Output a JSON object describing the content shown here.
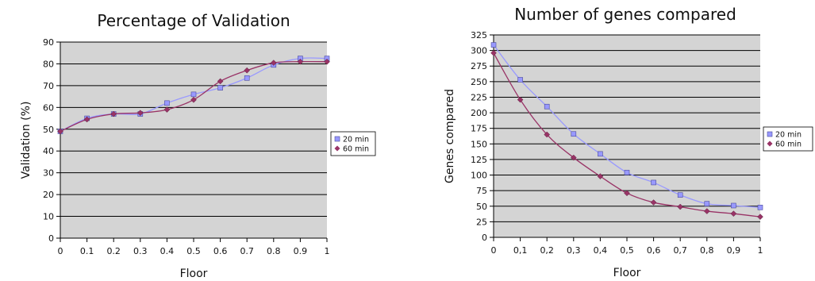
{
  "chart_data": [
    {
      "type": "line",
      "title": "Percentage of Validation",
      "xlabel": "Floor",
      "ylabel": "Validation (%)",
      "xlim": [
        0,
        1
      ],
      "ylim": [
        0,
        90
      ],
      "x": [
        0,
        0.1,
        0.2,
        0.3,
        0.4,
        0.5,
        0.6,
        0.7,
        0.8,
        0.9,
        1
      ],
      "x_tick_labels": [
        "0",
        "0.1",
        "0.2",
        "0.3",
        "0.4",
        "0.5",
        "0.6",
        "0.7",
        "0.8",
        "0.9",
        "1"
      ],
      "y_ticks": [
        0,
        10,
        20,
        30,
        40,
        50,
        60,
        70,
        80,
        90
      ],
      "grid": "horizontal",
      "legend_position": "right",
      "series": [
        {
          "name": "20 min",
          "color": "#9999ff",
          "marker": "square",
          "values": [
            49,
            55,
            57,
            57,
            62,
            66,
            69,
            73.5,
            79.5,
            82.5,
            82.5
          ]
        },
        {
          "name": "60 min",
          "color": "#993366",
          "marker": "diamond",
          "values": [
            49,
            54.5,
            57,
            57.5,
            59,
            63.5,
            72,
            77,
            80.5,
            81,
            81
          ]
        }
      ]
    },
    {
      "type": "line",
      "title": "Number of genes compared",
      "xlabel": "Floor",
      "ylabel": "Genes compared",
      "xlim": [
        0,
        1
      ],
      "ylim": [
        0,
        325
      ],
      "x": [
        0,
        0.1,
        0.2,
        0.3,
        0.4,
        0.5,
        0.6,
        0.7,
        0.8,
        0.9,
        1
      ],
      "x_tick_labels": [
        "0",
        "0,1",
        "0,2",
        "0,3",
        "0,4",
        "0,5",
        "0,6",
        "0,7",
        "0,8",
        "0,9",
        "1"
      ],
      "y_ticks": [
        0,
        25,
        50,
        75,
        100,
        125,
        150,
        175,
        200,
        225,
        250,
        275,
        300,
        325
      ],
      "grid": "horizontal",
      "legend_position": "right",
      "series": [
        {
          "name": "20 min",
          "color": "#9999ff",
          "marker": "square",
          "values": [
            309,
            253,
            210,
            166,
            134,
            104,
            88,
            68,
            54,
            51,
            48
          ]
        },
        {
          "name": "60 min",
          "color": "#993366",
          "marker": "diamond",
          "values": [
            296,
            221,
            165,
            128,
            98,
            71,
            56,
            49,
            42,
            38,
            33
          ]
        }
      ]
    }
  ]
}
